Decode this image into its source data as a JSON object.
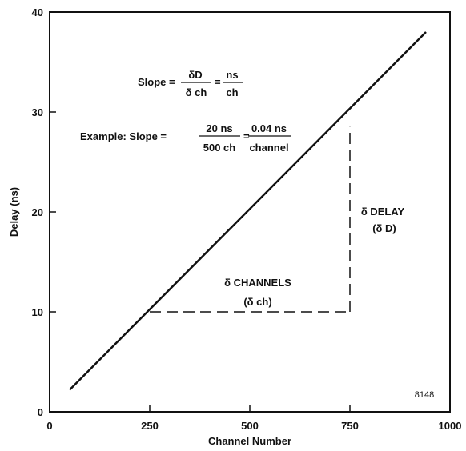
{
  "chart_data": {
    "type": "line",
    "xlabel": "Channel Number",
    "ylabel": "Delay (ns)",
    "xlim": [
      0,
      1000
    ],
    "ylim": [
      0,
      40
    ],
    "x_ticks": [
      0,
      250,
      500,
      750,
      1000
    ],
    "y_ticks": [
      0,
      10,
      20,
      30,
      40
    ],
    "grid": false,
    "series": [
      {
        "x": [
          50,
          940
        ],
        "y": [
          2.2,
          38.0
        ]
      }
    ],
    "annotations": {
      "slope_formula": {
        "lhs": "Slope =",
        "num1": "δD",
        "den1": "δ ch",
        "eq": "=",
        "num2": "ns",
        "den2": "ch"
      },
      "example": {
        "prefix": "Example:  Slope =",
        "num1": "20 ns",
        "den1": "500 ch",
        "eq": "=",
        "num2": "0.04 ns",
        "den2": "channel"
      },
      "delta_channels": "δ CHANNELS",
      "delta_ch": "(δ ch)",
      "delta_delay": "δ DELAY",
      "delta_d": "(δ D)",
      "figure_number": "8148"
    },
    "guides": {
      "horizontal": {
        "x": [
          250,
          750
        ],
        "y": 10
      },
      "vertical": {
        "x": 750,
        "y": [
          10,
          28.5
        ]
      }
    }
  }
}
